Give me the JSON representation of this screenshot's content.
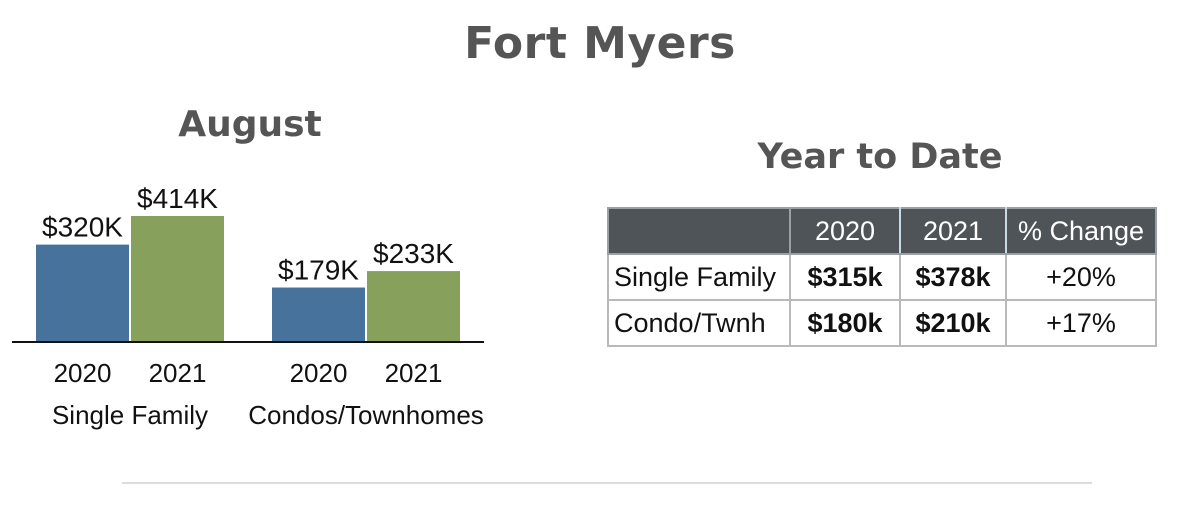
{
  "page_title": "Fort Myers",
  "august_title": "August",
  "ytd_title": "Year to Date",
  "chart_data": {
    "type": "bar",
    "title": "August",
    "groups": [
      "Single Family",
      "Condos/Townhomes"
    ],
    "categories": [
      "2020",
      "2021"
    ],
    "series": [
      {
        "values": [
          320,
          179
        ],
        "labels": [
          "$320K",
          "$179K"
        ],
        "color": "#46729b"
      },
      {
        "values": [
          414,
          233
        ],
        "labels": [
          "$414K",
          "$233K"
        ],
        "color": "#87a05c"
      }
    ],
    "unit": "$K",
    "ylim": [
      0,
      414
    ],
    "grid": false,
    "legend": "none"
  },
  "ytd_table": {
    "headers": [
      "",
      "2020",
      "2021",
      "% Change"
    ],
    "rows": [
      {
        "label": "Single Family",
        "v2020": "$315k",
        "v2021": "$378k",
        "change": "+20%"
      },
      {
        "label": "Condo/Twnh",
        "v2020": "$180k",
        "v2021": "$210k",
        "change": "+17%"
      }
    ]
  },
  "colors": {
    "title_gray": "#555555",
    "bar_2020": "#46729b",
    "bar_2021": "#87a05c",
    "table_header": "#4e5458"
  }
}
